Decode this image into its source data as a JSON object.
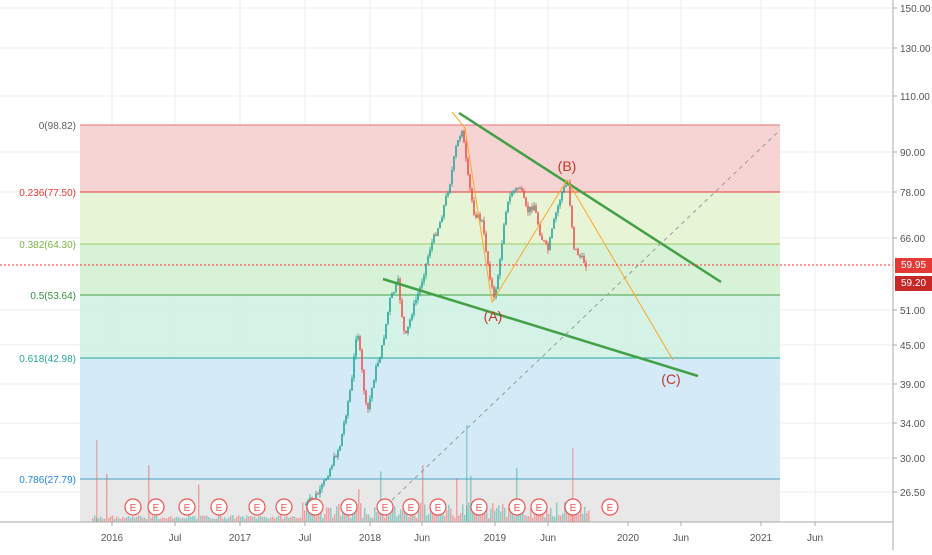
{
  "price_axis": {
    "labels": [
      "150.00",
      "130.00",
      "110.00",
      "90.00",
      "78.00",
      "66.00",
      "51.00",
      "45.00",
      "39.00",
      "34.00",
      "30.00",
      "26.50"
    ],
    "current_price": "59.95",
    "current_price_color": "#e53935",
    "second_price": "59.20",
    "second_price_color": "#c62828"
  },
  "time_axis": {
    "labels": [
      "2016",
      "Jul",
      "2017",
      "Jul",
      "2018",
      "Jun",
      "2019",
      "Jun",
      "2020",
      "Jun",
      "2021",
      "Jun"
    ]
  },
  "fib_levels": [
    {
      "label": "0(98.82)",
      "price": 98.82,
      "line_color": "#e57373",
      "text_color": "#616161"
    },
    {
      "label": "0.236(77.50)",
      "price": 77.5,
      "line_color": "#e53935",
      "text_color": "#e53935",
      "fill": "#f4cccc"
    },
    {
      "label": "0.382(64.30)",
      "price": 64.3,
      "line_color": "#9ccc65",
      "text_color": "#7cb342",
      "fill": "#e4f2cf"
    },
    {
      "label": "0.5(53.64)",
      "price": 53.64,
      "line_color": "#43a047",
      "text_color": "#388e3c",
      "fill": "#d0f0d0"
    },
    {
      "label": "0.618(42.98)",
      "price": 42.98,
      "line_color": "#26a69a",
      "text_color": "#26a69a",
      "fill": "#cdf0e0"
    },
    {
      "label": "0.786(27.79)",
      "price": 27.79,
      "line_color": "#4aa3c8",
      "text_color": "#1e88e5",
      "fill": "#cde6f4"
    }
  ],
  "wave_labels": {
    "a": "(A)",
    "b": "(B)",
    "c": "(C)"
  },
  "earnings_label": "E",
  "colors": {
    "up": "#26a69a",
    "down": "#ef5350",
    "trendline": "#43a047",
    "projection": "#ffa726",
    "wave_text": "#c0392b",
    "axis_text": "#555555",
    "grid": "#eeeeee"
  }
}
